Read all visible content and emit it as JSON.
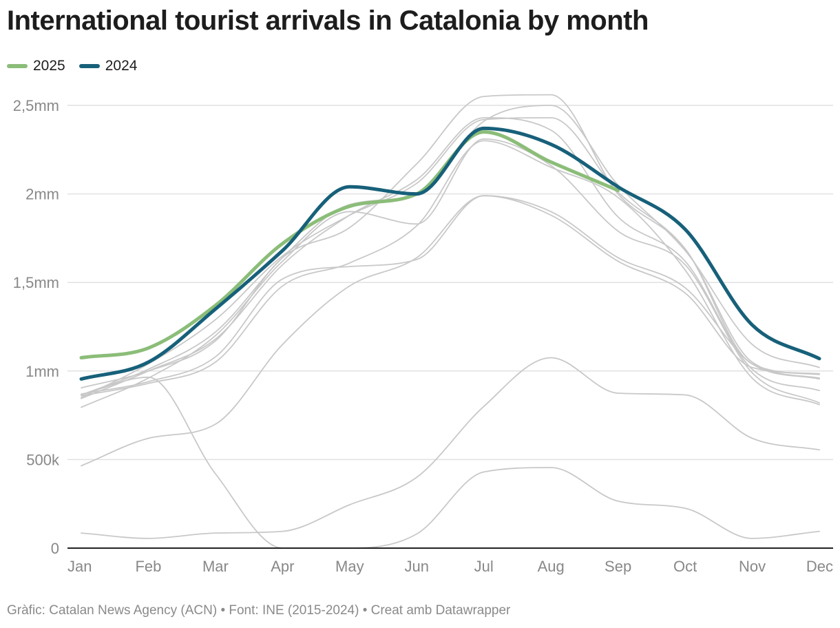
{
  "title": "International tourist arrivals in Catalonia by month",
  "footer": "Gràfic: Catalan News Agency (ACN) • Font: INE (2015-2024) • Creat amb Datawrapper",
  "colors": {
    "series_2025": "#8bbd78",
    "series_2024": "#17607a",
    "background_lines": "#c8c8c8",
    "grid": "#e1e1e1",
    "axis": "#222222",
    "tick_label": "#888888"
  },
  "chart_data": {
    "type": "line",
    "title": "International tourist arrivals in Catalonia by month",
    "categories": [
      "Jan",
      "Feb",
      "Mar",
      "Apr",
      "May",
      "Jun",
      "Jul",
      "Aug",
      "Sep",
      "Oct",
      "Nov",
      "Dec"
    ],
    "ylim": [
      0,
      2500000
    ],
    "y_ticks": [
      {
        "value": 0,
        "label": "0"
      },
      {
        "value": 500000,
        "label": "500k"
      },
      {
        "value": 1000000,
        "label": "1mm"
      },
      {
        "value": 1500000,
        "label": "1,5mm"
      },
      {
        "value": 2000000,
        "label": "2mm"
      },
      {
        "value": 2500000,
        "label": "2,5mm"
      }
    ],
    "grid": true,
    "legend_position": "top-left",
    "series": [
      {
        "name": "2025",
        "highlight": true,
        "values": [
          1075000,
          1130000,
          1370000,
          1720000,
          1930000,
          2000000,
          2350000,
          2180000,
          2020000,
          null,
          null,
          null
        ]
      },
      {
        "name": "2024",
        "highlight": true,
        "values": [
          955000,
          1050000,
          1350000,
          1680000,
          2040000,
          2000000,
          2370000,
          2280000,
          2040000,
          1800000,
          1260000,
          1070000
        ]
      }
    ],
    "background_series": [
      {
        "values": [
          865000,
          1010000,
          1220000,
          1640000,
          1940000,
          2000000,
          2410000,
          2500000,
          2050000,
          1680000,
          1150000,
          1020000
        ]
      },
      {
        "values": [
          905000,
          1000000,
          1170000,
          1640000,
          1810000,
          2170000,
          2550000,
          2560000,
          2000000,
          1690000,
          1050000,
          960000
        ]
      },
      {
        "values": [
          850000,
          1040000,
          1290000,
          1650000,
          1880000,
          2060000,
          2420000,
          2430000,
          2010000,
          1690000,
          1040000,
          980000
        ]
      },
      {
        "values": [
          845000,
          1000000,
          1180000,
          1600000,
          1880000,
          2080000,
          2430000,
          2360000,
          1870000,
          1620000,
          1010000,
          890000
        ]
      },
      {
        "values": [
          795000,
          960000,
          1200000,
          1620000,
          1900000,
          1830000,
          2310000,
          2160000,
          1790000,
          1600000,
          990000,
          820000
        ]
      },
      {
        "values": [
          860000,
          930000,
          1050000,
          1480000,
          1610000,
          1820000,
          2300000,
          2150000,
          1980000,
          1570000,
          960000,
          810000
        ]
      },
      {
        "values": [
          870000,
          940000,
          1080000,
          1520000,
          1590000,
          1630000,
          1990000,
          1900000,
          1640000,
          1470000,
          1040000,
          955000
        ]
      },
      {
        "values": [
          465000,
          620000,
          700000,
          1150000,
          1480000,
          1640000,
          1990000,
          1880000,
          1620000,
          1440000,
          1020000,
          985000
        ]
      },
      {
        "values": [
          865000,
          965000,
          420000,
          0,
          0,
          80000,
          430000,
          455000,
          265000,
          225000,
          55000,
          95000
        ]
      },
      {
        "values": [
          85000,
          55000,
          85000,
          95000,
          245000,
          400000,
          800000,
          1075000,
          875000,
          865000,
          620000,
          555000
        ]
      }
    ]
  }
}
